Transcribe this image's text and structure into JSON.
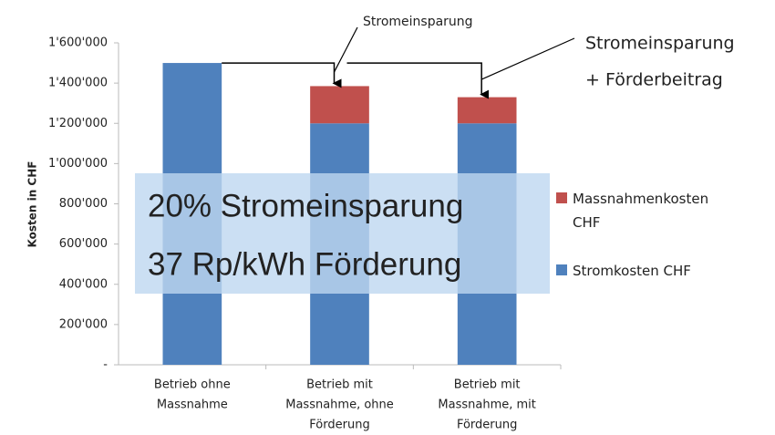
{
  "chart_data": {
    "type": "bar",
    "stacked": true,
    "categories": [
      [
        "Betrieb ohne",
        "Massnahme"
      ],
      [
        "Betrieb mit",
        "Massnahme, ohne",
        "Förderung"
      ],
      [
        "Betrieb mit",
        "Massnahme, mit",
        "Förderung"
      ]
    ],
    "series": [
      {
        "name": "Stromkosten CHF",
        "color": "#4f81bd",
        "values": [
          1500000,
          1200000,
          1200000
        ]
      },
      {
        "name": "Massnahmenkosten CHF",
        "color": "#c0504d",
        "values": [
          0,
          185000,
          130000
        ]
      }
    ],
    "ylabel": "Kosten in CHF",
    "ylim": [
      0,
      1600000
    ],
    "yticks": [
      {
        "value": 0,
        "label": "-"
      },
      {
        "value": 200000,
        "label": "200'000"
      },
      {
        "value": 400000,
        "label": "400'000"
      },
      {
        "value": 600000,
        "label": "600'000"
      },
      {
        "value": 800000,
        "label": "800'000"
      },
      {
        "value": 1000000,
        "label": "1'000'000"
      },
      {
        "value": 1200000,
        "label": "1'200'000"
      },
      {
        "value": 1400000,
        "label": "1'400'000"
      },
      {
        "value": 1600000,
        "label": "1'600'000"
      }
    ],
    "annotations": [
      "Stromeinsparung",
      "Stromeinsparung",
      "+ Förderbeitrag"
    ],
    "overlay": [
      "20% Stromeinsparung",
      "37 Rp/kWh Förderung"
    ],
    "legend": "right"
  }
}
